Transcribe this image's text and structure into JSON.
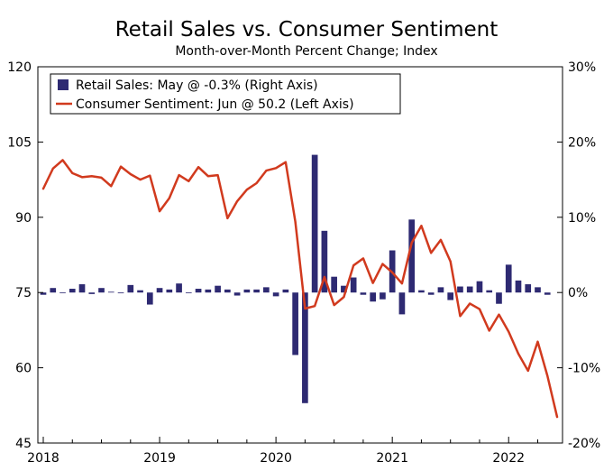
{
  "chart_data": {
    "type": "bar+line",
    "title": "Retail Sales vs. Consumer Sentiment",
    "subtitle": "Month-over-Month Percent Change; Index",
    "legend_placement": "top-left",
    "left_axis": {
      "ylim": [
        45,
        120
      ],
      "ticks": [
        "45",
        "60",
        "75",
        "90",
        "105",
        "120"
      ]
    },
    "right_axis": {
      "ylim": [
        -20,
        30
      ],
      "ticks": [
        "-20%",
        "-10%",
        "0%",
        "10%",
        "20%",
        "30%"
      ]
    },
    "x_axis": {
      "start": "2018-01",
      "end": "2022-06",
      "tick_labels": [
        "2018",
        "2019",
        "2020",
        "2021",
        "2022"
      ]
    },
    "grid": false,
    "colors": {
      "bars": "#2e2a72",
      "line": "#d13a1e"
    },
    "series": [
      {
        "name": "Retail Sales: May @ -0.3% (Right Axis)",
        "kind": "bar",
        "axis": "right",
        "x_start": "2018-01",
        "values": [
          -0.3,
          0.6,
          0.0,
          0.5,
          1.1,
          -0.2,
          0.6,
          0.1,
          -0.1,
          1.0,
          0.3,
          -1.6,
          0.6,
          0.4,
          1.2,
          0.0,
          0.5,
          0.4,
          0.9,
          0.4,
          -0.4,
          0.4,
          0.4,
          0.7,
          -0.5,
          0.4,
          -8.3,
          -14.7,
          18.3,
          8.2,
          2.1,
          0.9,
          2.0,
          -0.3,
          -1.2,
          -0.9,
          5.6,
          -2.9,
          9.7,
          0.3,
          -0.3,
          0.7,
          -1.0,
          0.8,
          0.8,
          1.5,
          0.3,
          -1.5,
          3.7,
          1.6,
          1.1,
          0.7,
          -0.3
        ]
      },
      {
        "name": "Consumer Sentiment: Jun @ 50.2 (Left Axis)",
        "kind": "line",
        "axis": "left",
        "x_start": "2018-01",
        "values": [
          95.7,
          99.7,
          101.4,
          98.8,
          98.0,
          98.2,
          97.9,
          96.2,
          100.1,
          98.6,
          97.5,
          98.3,
          91.2,
          93.8,
          98.4,
          97.2,
          100.0,
          98.2,
          98.4,
          89.8,
          93.2,
          95.5,
          96.8,
          99.3,
          99.8,
          101.0,
          89.1,
          71.8,
          72.3,
          78.1,
          72.5,
          74.1,
          80.4,
          81.8,
          76.9,
          80.7,
          79.0,
          76.8,
          84.9,
          88.3,
          82.9,
          85.5,
          81.2,
          70.3,
          72.8,
          71.7,
          67.4,
          70.6,
          67.2,
          62.8,
          59.4,
          65.2,
          58.4,
          50.2
        ]
      }
    ]
  }
}
